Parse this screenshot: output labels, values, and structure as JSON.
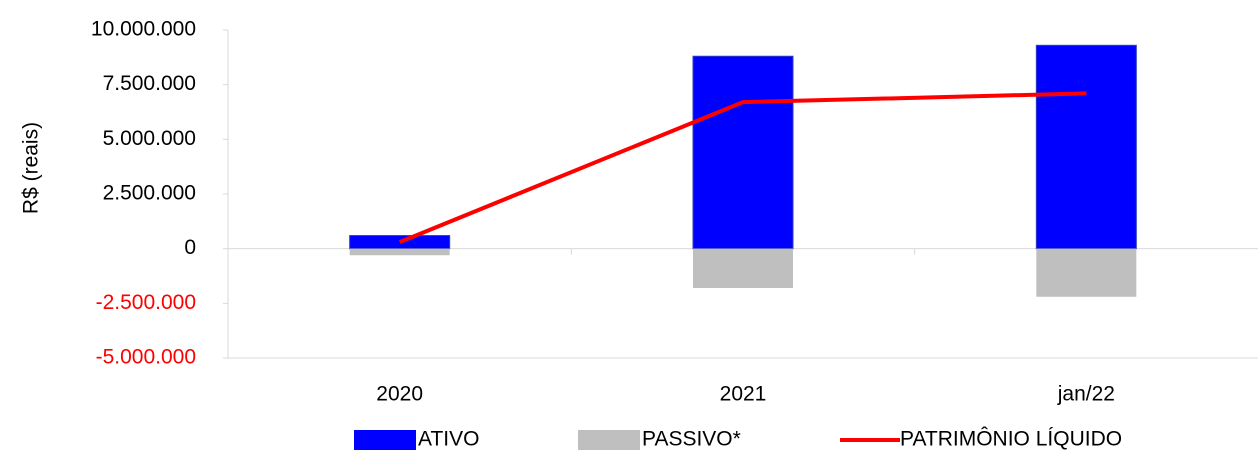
{
  "chart_data": {
    "type": "bar_line",
    "y_label": "R$ (reais)",
    "categories": [
      "2020",
      "2021",
      "jan/22"
    ],
    "series": [
      {
        "name": "ATIVO",
        "type": "bar",
        "color": "#0000ff",
        "values": [
          600000,
          8800000,
          9300000
        ]
      },
      {
        "name": "PASSIVO*",
        "type": "bar",
        "color": "#bfbfbf",
        "values": [
          -300000,
          -1800000,
          -2200000
        ]
      },
      {
        "name": "PATRIMÔNIO LÍQUIDO",
        "type": "line",
        "color": "#ff0000",
        "values": [
          300000,
          6700000,
          7100000
        ]
      }
    ],
    "ylim": [
      -5000000,
      10000000
    ],
    "yticks": [
      {
        "value": -5000000,
        "label": "-5.000.000"
      },
      {
        "value": -2500000,
        "label": "-2.500.000"
      },
      0,
      {
        "value": 2500000,
        "label": "2.500.000"
      },
      {
        "value": 5000000,
        "label": "5.000.000"
      },
      {
        "value": 7500000,
        "label": "7.500.000"
      },
      {
        "value": 10000000,
        "label": "10.000.000"
      }
    ],
    "negative_tick_color": "#ff0000",
    "legend": "bottom"
  }
}
